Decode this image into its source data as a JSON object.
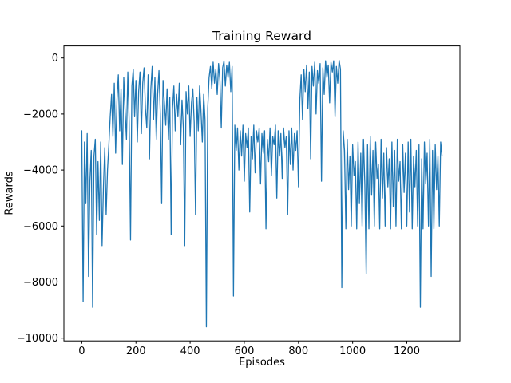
{
  "chart_data": {
    "type": "line",
    "title": "Training Reward",
    "xlabel": "Episodes",
    "ylabel": "Rewards",
    "line_color": "#1f77b4",
    "axis_color": "#000000",
    "xlim": [
      -66,
      1396
    ],
    "ylim": [
      -10100,
      430
    ],
    "grid": false,
    "legend": "none",
    "x_ticks": [
      {
        "v": 0,
        "label": "0"
      },
      {
        "v": 200,
        "label": "200"
      },
      {
        "v": 400,
        "label": "400"
      },
      {
        "v": 600,
        "label": "600"
      },
      {
        "v": 800,
        "label": "800"
      },
      {
        "v": 1000,
        "label": "1000"
      },
      {
        "v": 1200,
        "label": "1200"
      }
    ],
    "y_ticks": [
      {
        "v": 0,
        "label": "0"
      },
      {
        "v": -2000,
        "label": "−2000"
      },
      {
        "v": -4000,
        "label": "−4000"
      },
      {
        "v": -6000,
        "label": "−6000"
      },
      {
        "v": -8000,
        "label": "−8000"
      },
      {
        "v": -10000,
        "label": "−10000"
      }
    ],
    "series": [
      {
        "name": "reward",
        "x_start": 0,
        "x_step": 5,
        "values": [
          -2600,
          -8700,
          -3000,
          -5200,
          -2700,
          -7800,
          -4400,
          -3300,
          -8900,
          -3500,
          -2900,
          -6300,
          -3700,
          -5800,
          -3000,
          -6700,
          -4600,
          -3200,
          -5600,
          -4000,
          -3100,
          -2100,
          -1300,
          -2800,
          -900,
          -3400,
          -1500,
          -600,
          -2600,
          -1100,
          -3800,
          -700,
          -1900,
          -2900,
          -500,
          -2300,
          -6500,
          -1000,
          -400,
          -2100,
          -800,
          -3000,
          -1200,
          -500,
          -2700,
          -900,
          -350,
          -1800,
          -2500,
          -600,
          -3600,
          -1100,
          -300,
          -2200,
          -700,
          -2900,
          -1300,
          -450,
          -2000,
          -5200,
          -800,
          -1600,
          -2400,
          -1100,
          -2900,
          -1400,
          -6300,
          -1800,
          -1000,
          -2600,
          -1300,
          -2100,
          -900,
          -3100,
          -1500,
          -2500,
          -6700,
          -1200,
          -2000,
          -1000,
          -2800,
          -1600,
          -1100,
          -2300,
          -5600,
          -1400,
          -2600,
          -1000,
          -1900,
          -3000,
          -1300,
          -2200,
          -9600,
          -1800,
          -700,
          -300,
          -1100,
          -150,
          -900,
          -400,
          -1300,
          -200,
          -800,
          -2500,
          -350,
          -100,
          -1000,
          -250,
          -700,
          -150,
          -1200,
          -300,
          -8500,
          -2400,
          -3300,
          -2500,
          -4000,
          -2600,
          -3500,
          -2400,
          -4400,
          -2700,
          -3200,
          -2500,
          -5500,
          -2800,
          -3600,
          -2400,
          -4100,
          -2600,
          -3000,
          -2500,
          -4500,
          -2700,
          -3400,
          -2600,
          -6100,
          -2900,
          -3700,
          -2500,
          -4200,
          -2800,
          -3100,
          -2400,
          -5000,
          -2600,
          -3500,
          -2700,
          -4300,
          -2500,
          -3200,
          -2800,
          -5600,
          -2600,
          -3800,
          -2500,
          -4000,
          -2700,
          -3300,
          -2600,
          -4600,
          -1500,
          -600,
          -2200,
          -400,
          -1200,
          -250,
          -1800,
          -500,
          -3600,
          -300,
          -1000,
          -150,
          -2000,
          -450,
          -900,
          -200,
          -4400,
          -350,
          -1300,
          -100,
          -700,
          -250,
          -1600,
          -150,
          -500,
          -100,
          -2100,
          -300,
          -900,
          -80,
          -400,
          -8200,
          -2600,
          -3300,
          -6100,
          -2900,
          -4700,
          -3500,
          -6000,
          -3100,
          -4200,
          -3700,
          -6100,
          -3000,
          -5200,
          -3400,
          -6000,
          -2900,
          -4500,
          -7700,
          -3100,
          -6100,
          -2800,
          -4900,
          -3300,
          -6000,
          -3000,
          -4300,
          -3800,
          -6100,
          -2900,
          -5000,
          -3400,
          -6000,
          -3200,
          -4600,
          -3600,
          -6100,
          -3000,
          -5300,
          -3300,
          -6000,
          -2900,
          -4400,
          -3700,
          -6100,
          -3100,
          -4800,
          -3400,
          -6000,
          -3000,
          -5500,
          -2900,
          -6100,
          -3500,
          -4600,
          -3300,
          -6000,
          -3100,
          -8900,
          -3600,
          -6100,
          -3000,
          -4500,
          -3400,
          -6000,
          -2900,
          -7800,
          -3300,
          -6100,
          -3100,
          -4700,
          -3500,
          -6000,
          -3000,
          -3500
        ]
      }
    ]
  }
}
